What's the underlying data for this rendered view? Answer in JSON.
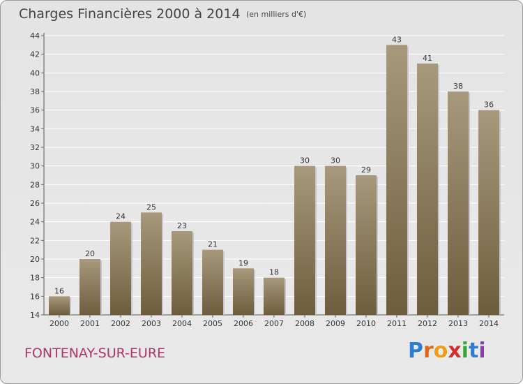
{
  "header": {
    "title": "Charges Financières 2000 à 2014",
    "subtitle": "(en milliers d'€)"
  },
  "footer": {
    "city": "FONTENAY-SUR-EURE",
    "brand": [
      "P",
      "r",
      "o",
      "x",
      "i",
      "t",
      "i"
    ],
    "brand_colors": [
      "#2e7dd1",
      "#e0651a",
      "#f29a1a",
      "#d62e2e",
      "#3aa63a",
      "#2e7dd1",
      "#8a3ab5"
    ]
  },
  "colors": {
    "bar_top": "#a8997c",
    "bar_bottom": "#6e5c3e",
    "grid": "#ffffff",
    "axis_text": "#333333"
  },
  "chart_data": {
    "type": "bar",
    "categories": [
      "2000",
      "2001",
      "2002",
      "2003",
      "2004",
      "2005",
      "2006",
      "2007",
      "2008",
      "2009",
      "2010",
      "2011",
      "2012",
      "2013",
      "2014"
    ],
    "values": [
      16,
      20,
      24,
      25,
      23,
      21,
      19,
      18,
      30,
      30,
      29,
      43,
      41,
      38,
      36
    ],
    "yticks": [
      14,
      16,
      18,
      20,
      22,
      24,
      26,
      28,
      30,
      32,
      34,
      36,
      38,
      40,
      42,
      44
    ],
    "ylim": [
      14,
      44
    ],
    "title": "Charges Financières 2000 à 2014",
    "subtitle": "(en milliers d'€)",
    "grid": true,
    "data_labels": true
  }
}
